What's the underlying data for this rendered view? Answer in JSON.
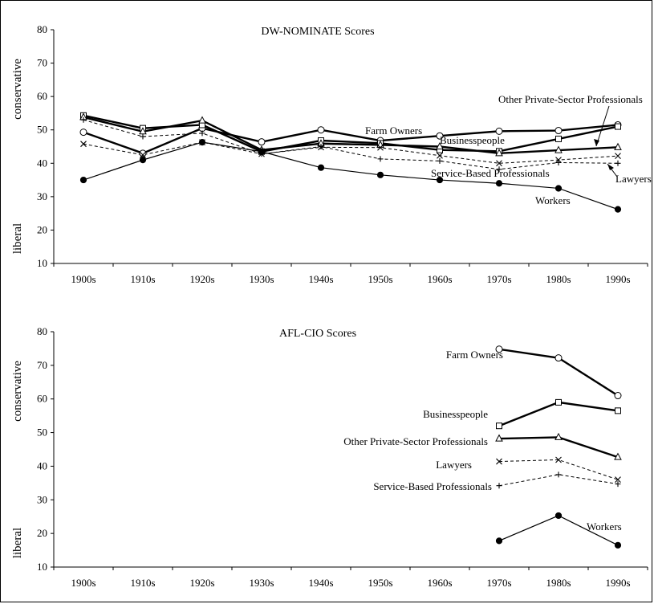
{
  "chart_data": [
    {
      "type": "line",
      "title": "DW-NOMINATE Scores",
      "ylabel_top": "conservative",
      "ylabel_bottom": "liberal",
      "ylim": [
        10,
        80
      ],
      "yticks": [
        "10",
        "20",
        "30",
        "40",
        "50",
        "60",
        "70",
        "80"
      ],
      "categories": [
        "1900s",
        "1910s",
        "1920s",
        "1930s",
        "1940s",
        "1950s",
        "1960s",
        "1970s",
        "1980s",
        "1990s"
      ],
      "annotations": [
        "Other Private-Sector Professionals",
        "Farm Owners",
        "Businesspeople",
        "Service-Based Professionals",
        "Lawyers",
        "Workers"
      ],
      "series": [
        {
          "name": "Farm Owners",
          "marker": "circle-open",
          "style": "bold",
          "values": [
            49.3,
            43.0,
            50.5,
            46.4,
            50.0,
            46.8,
            48.2,
            49.6,
            49.8,
            51.5
          ]
        },
        {
          "name": "Businesspeople",
          "marker": "square",
          "style": "bold",
          "values": [
            54.3,
            50.5,
            51.5,
            43.5,
            46.8,
            46.0,
            44.0,
            43.6,
            47.3,
            51.0
          ]
        },
        {
          "name": "Other Private-Sector Professionals",
          "marker": "triangle",
          "style": "bold",
          "values": [
            53.8,
            49.5,
            52.8,
            44.0,
            45.9,
            45.5,
            45.0,
            43.0,
            43.9,
            44.8
          ]
        },
        {
          "name": "Lawyers",
          "marker": "x",
          "style": "dashed",
          "values": [
            45.8,
            42.5,
            46.3,
            42.8,
            44.8,
            44.7,
            42.3,
            40.0,
            41.0,
            42.2
          ]
        },
        {
          "name": "Service-Based Professionals",
          "marker": "plus",
          "style": "dashed",
          "values": [
            53.0,
            48.0,
            49.0,
            42.8,
            45.0,
            41.3,
            40.7,
            38.2,
            40.2,
            40.0
          ]
        },
        {
          "name": "Workers",
          "marker": "circle-filled",
          "style": "thin",
          "values": [
            35.0,
            41.0,
            46.3,
            43.5,
            38.7,
            36.5,
            35.0,
            34.0,
            32.5,
            26.2
          ]
        }
      ]
    },
    {
      "type": "line",
      "title": "AFL-CIO  Scores",
      "ylabel_top": "conservative",
      "ylabel_bottom": "liberal",
      "ylim": [
        10,
        80
      ],
      "yticks": [
        "10",
        "20",
        "30",
        "40",
        "50",
        "60",
        "70",
        "80"
      ],
      "categories": [
        "1900s",
        "1910s",
        "1920s",
        "1930s",
        "1940s",
        "1950s",
        "1960s",
        "1970s",
        "1980s",
        "1990s"
      ],
      "series": [
        {
          "name": "Farm Owners",
          "marker": "circle-open",
          "style": "bold",
          "values": [
            null,
            null,
            null,
            null,
            null,
            null,
            null,
            74.8,
            72.2,
            61.0
          ]
        },
        {
          "name": "Businesspeople",
          "marker": "square",
          "style": "bold",
          "values": [
            null,
            null,
            null,
            null,
            null,
            null,
            null,
            52.0,
            59.0,
            56.5
          ]
        },
        {
          "name": "Other Private-Sector Professionals",
          "marker": "triangle",
          "style": "bold",
          "values": [
            null,
            null,
            null,
            null,
            null,
            null,
            null,
            48.2,
            48.6,
            42.7
          ]
        },
        {
          "name": "Lawyers",
          "marker": "x",
          "style": "dashed",
          "values": [
            null,
            null,
            null,
            null,
            null,
            null,
            null,
            41.4,
            41.9,
            36.0
          ]
        },
        {
          "name": "Service-Based Professionals",
          "marker": "plus",
          "style": "dashed",
          "values": [
            null,
            null,
            null,
            null,
            null,
            null,
            null,
            34.2,
            37.5,
            34.7
          ]
        },
        {
          "name": "Workers",
          "marker": "circle-filled",
          "style": "thin",
          "values": [
            null,
            null,
            null,
            null,
            null,
            null,
            null,
            17.8,
            25.3,
            16.5
          ]
        }
      ]
    }
  ]
}
